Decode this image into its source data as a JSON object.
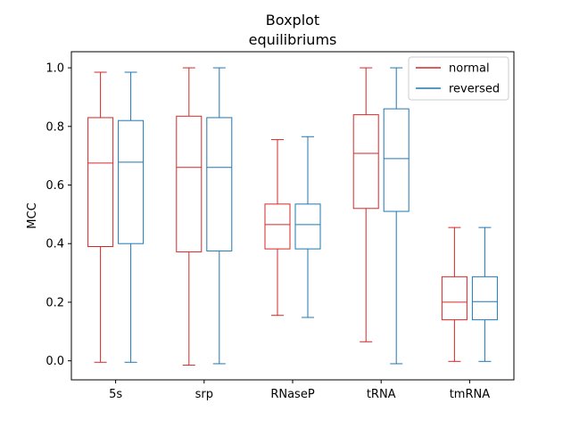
{
  "chart_data": {
    "type": "box",
    "title": "Boxplot",
    "subtitle": "equilibriums",
    "xlabel": "",
    "ylabel": "MCC",
    "ylim": [
      -0.065,
      1.055
    ],
    "yticks": [
      0.0,
      0.2,
      0.4,
      0.6,
      0.8,
      1.0
    ],
    "ytick_labels": [
      "0.0",
      "0.2",
      "0.4",
      "0.6",
      "0.8",
      "1.0"
    ],
    "categories": [
      "5s",
      "srp",
      "RNaseP",
      "tRNA",
      "tmRNA"
    ],
    "legend_position": "top-right",
    "grid": false,
    "series": [
      {
        "name": "normal",
        "color": "#d62728",
        "boxes": [
          {
            "whislo": -0.005,
            "q1": 0.39,
            "med": 0.675,
            "q3": 0.83,
            "whishi": 0.985
          },
          {
            "whislo": -0.015,
            "q1": 0.372,
            "med": 0.66,
            "q3": 0.835,
            "whishi": 1.0
          },
          {
            "whislo": 0.155,
            "q1": 0.382,
            "med": 0.465,
            "q3": 0.535,
            "whishi": 0.755
          },
          {
            "whislo": 0.065,
            "q1": 0.52,
            "med": 0.708,
            "q3": 0.84,
            "whishi": 1.0
          },
          {
            "whislo": -0.002,
            "q1": 0.14,
            "med": 0.2,
            "q3": 0.287,
            "whishi": 0.455
          }
        ]
      },
      {
        "name": "reversed",
        "color": "#1f77b4",
        "boxes": [
          {
            "whislo": -0.005,
            "q1": 0.4,
            "med": 0.678,
            "q3": 0.82,
            "whishi": 0.985
          },
          {
            "whislo": -0.01,
            "q1": 0.375,
            "med": 0.66,
            "q3": 0.83,
            "whishi": 1.0
          },
          {
            "whislo": 0.148,
            "q1": 0.382,
            "med": 0.465,
            "q3": 0.535,
            "whishi": 0.765
          },
          {
            "whislo": -0.01,
            "q1": 0.51,
            "med": 0.69,
            "q3": 0.86,
            "whishi": 1.0
          },
          {
            "whislo": -0.002,
            "q1": 0.14,
            "med": 0.202,
            "q3": 0.287,
            "whishi": 0.455
          }
        ]
      }
    ]
  }
}
